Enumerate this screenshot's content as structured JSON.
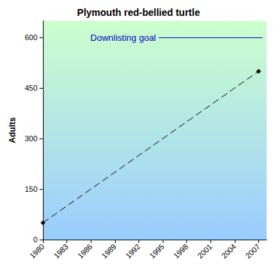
{
  "chart_data": {
    "type": "line",
    "title": "Plymouth red-bellied turtle",
    "y_label": "Adults",
    "x": [
      1980,
      2007
    ],
    "values": [
      50,
      500
    ],
    "color": "#000000",
    "marker": "diamond",
    "line_style": "dashed",
    "xlim": [
      1980,
      2008
    ],
    "xticks": [
      1980,
      1983,
      1986,
      1989,
      1992,
      1995,
      1998,
      2001,
      2004,
      2007
    ],
    "ylim": [
      0,
      650
    ],
    "yticks": [
      0,
      150,
      300,
      450,
      600
    ],
    "grid": false,
    "annotations": [
      {
        "text": "Downlisting goal",
        "y": 600,
        "x_start": 1994.5,
        "x_end": 2007.5,
        "color": "#0000cc"
      }
    ]
  }
}
